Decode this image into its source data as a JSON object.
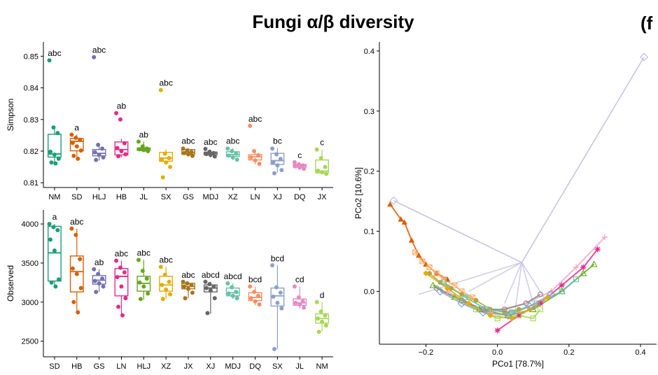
{
  "figure": {
    "title": "Fungi α/β diversity",
    "panel_label": "(f"
  },
  "chart_data": [
    {
      "type": "box",
      "id": "simpson",
      "ylabel": "Simpson",
      "ylim": [
        0.8085,
        0.8545
      ],
      "yticks": [
        0.81,
        0.82,
        0.83,
        0.84,
        0.85
      ],
      "ytick_labels": [
        "0.81",
        "0.82",
        "0.83",
        "0.84",
        "0.85"
      ],
      "groups": [
        {
          "name": "NM",
          "color": "#1b9e77",
          "q1": 0.8181,
          "median": 0.8191,
          "q3": 0.8253,
          "lw": 0.8161,
          "uw": 0.827,
          "letter": "abc",
          "points": [
            0.8487,
            0.8275,
            0.8257,
            0.8198,
            0.8189,
            0.8176,
            0.8164,
            0.8161
          ]
        },
        {
          "name": "SD",
          "color": "#d95f02",
          "q1": 0.8201,
          "median": 0.8231,
          "q3": 0.824,
          "lw": 0.8172,
          "uw": 0.8252,
          "letter": "a",
          "points": [
            0.8252,
            0.8242,
            0.8236,
            0.8226,
            0.8215,
            0.8202,
            0.8185,
            0.8176
          ]
        },
        {
          "name": "HLJ",
          "color": "#7570b3",
          "q1": 0.8185,
          "median": 0.8193,
          "q3": 0.8205,
          "lw": 0.817,
          "uw": 0.822,
          "letter": "abc",
          "points": [
            0.8497,
            0.822,
            0.8208,
            0.8196,
            0.8188,
            0.818,
            0.8172
          ]
        },
        {
          "name": "HB",
          "color": "#e7298a",
          "q1": 0.8188,
          "median": 0.8205,
          "q3": 0.8229,
          "lw": 0.818,
          "uw": 0.8239,
          "letter": "ab",
          "points": [
            0.832,
            0.83,
            0.8225,
            0.821,
            0.82,
            0.819,
            0.8184
          ]
        },
        {
          "name": "JL",
          "color": "#66a61e",
          "q1": 0.8202,
          "median": 0.8207,
          "q3": 0.821,
          "lw": 0.8199,
          "uw": 0.823,
          "letter": "ab",
          "points": [
            0.823,
            0.8215,
            0.8208,
            0.8206,
            0.8203,
            0.82
          ]
        },
        {
          "name": "SX",
          "color": "#e6ab02",
          "q1": 0.8168,
          "median": 0.8178,
          "q3": 0.8196,
          "lw": 0.8158,
          "uw": 0.8205,
          "letter": "abc",
          "points": [
            0.8393,
            0.8192,
            0.8178,
            0.8172,
            0.8164,
            0.815,
            0.8117
          ]
        },
        {
          "name": "GS",
          "color": "#a6761d",
          "q1": 0.819,
          "median": 0.8196,
          "q3": 0.8205,
          "lw": 0.8183,
          "uw": 0.821,
          "letter": "abc",
          "points": [
            0.8208,
            0.8202,
            0.8197,
            0.8194,
            0.819,
            0.8185
          ]
        },
        {
          "name": "MDJ",
          "color": "#666666",
          "q1": 0.8188,
          "median": 0.8193,
          "q3": 0.8197,
          "lw": 0.818,
          "uw": 0.8205,
          "letter": "abc",
          "points": [
            0.8207,
            0.8198,
            0.8194,
            0.8191,
            0.8188,
            0.8183
          ]
        },
        {
          "name": "XZ",
          "color": "#66c2a5",
          "q1": 0.8183,
          "median": 0.8189,
          "q3": 0.8198,
          "lw": 0.8172,
          "uw": 0.821,
          "letter": "abc",
          "points": [
            0.8208,
            0.82,
            0.8192,
            0.8186,
            0.818,
            0.8173
          ]
        },
        {
          "name": "LN",
          "color": "#fc8d62",
          "q1": 0.8172,
          "median": 0.8182,
          "q3": 0.8189,
          "lw": 0.8158,
          "uw": 0.8203,
          "letter": "abc",
          "points": [
            0.828,
            0.82,
            0.8187,
            0.818,
            0.8171,
            0.816
          ]
        },
        {
          "name": "XJ",
          "color": "#8da0cb",
          "q1": 0.8158,
          "median": 0.817,
          "q3": 0.8193,
          "lw": 0.8132,
          "uw": 0.821,
          "letter": "bc",
          "points": [
            0.8208,
            0.819,
            0.8175,
            0.8165,
            0.8155,
            0.814,
            0.813
          ]
        },
        {
          "name": "DQ",
          "color": "#e78ac3",
          "q1": 0.8149,
          "median": 0.8154,
          "q3": 0.8158,
          "lw": 0.8143,
          "uw": 0.8165,
          "letter": "c",
          "points": [
            0.8165,
            0.8158,
            0.8155,
            0.8152,
            0.8148,
            0.8144
          ]
        },
        {
          "name": "JX",
          "color": "#a6d854",
          "q1": 0.8131,
          "median": 0.8137,
          "q3": 0.8172,
          "lw": 0.8127,
          "uw": 0.8205,
          "letter": "c",
          "points": [
            0.8205,
            0.8178,
            0.815,
            0.8138,
            0.8133,
            0.8128
          ]
        }
      ]
    },
    {
      "type": "box",
      "id": "observed",
      "ylabel": "Observed",
      "ylim": [
        2300,
        4180
      ],
      "yticks": [
        2500,
        3000,
        3500,
        4000
      ],
      "ytick_labels": [
        "2500",
        "3000",
        "3500",
        "4000"
      ],
      "groups": [
        {
          "name": "SD",
          "color": "#1b9e77",
          "q1": 3270,
          "median": 3630,
          "q3": 3970,
          "lw": 3190,
          "uw": 4000,
          "letter": "a",
          "points": [
            4000,
            3960,
            3920,
            3800,
            3660,
            3290,
            3250,
            3200
          ]
        },
        {
          "name": "HB",
          "color": "#d95f02",
          "q1": 3130,
          "median": 3390,
          "q3": 3590,
          "lw": 2860,
          "uw": 3940,
          "letter": "abc",
          "points": [
            3940,
            3860,
            3550,
            3430,
            3360,
            3180,
            3000,
            2870
          ]
        },
        {
          "name": "GS",
          "color": "#7570b3",
          "q1": 3230,
          "median": 3280,
          "q3": 3340,
          "lw": 3130,
          "uw": 3420,
          "letter": "ab",
          "points": [
            3420,
            3360,
            3300,
            3270,
            3240,
            3200,
            3130
          ]
        },
        {
          "name": "LN",
          "color": "#e7298a",
          "q1": 3080,
          "median": 3330,
          "q3": 3430,
          "lw": 2830,
          "uw": 3530,
          "letter": "abc",
          "points": [
            3530,
            3440,
            3380,
            3320,
            3200,
            3050,
            2940,
            2830
          ]
        },
        {
          "name": "HLJ",
          "color": "#66a61e",
          "q1": 3140,
          "median": 3240,
          "q3": 3330,
          "lw": 3030,
          "uw": 3540,
          "letter": "abc",
          "points": [
            3540,
            3400,
            3300,
            3250,
            3200,
            3110,
            3040
          ]
        },
        {
          "name": "XZ",
          "color": "#e6ab02",
          "q1": 3140,
          "median": 3220,
          "q3": 3330,
          "lw": 3040,
          "uw": 3450,
          "letter": "abc",
          "points": [
            3450,
            3350,
            3260,
            3220,
            3160,
            3100,
            3040
          ]
        },
        {
          "name": "JX",
          "color": "#a6761d",
          "q1": 3170,
          "median": 3200,
          "q3": 3240,
          "lw": 3050,
          "uw": 3260,
          "letter": "abc",
          "points": [
            3260,
            3240,
            3220,
            3200,
            3170,
            3120,
            3050
          ]
        },
        {
          "name": "XJ",
          "color": "#666666",
          "q1": 3130,
          "median": 3180,
          "q3": 3220,
          "lw": 2850,
          "uw": 3260,
          "letter": "abcd",
          "points": [
            3260,
            3230,
            3200,
            3180,
            3150,
            3050,
            2860
          ]
        },
        {
          "name": "MDJ",
          "color": "#66c2a5",
          "q1": 3080,
          "median": 3120,
          "q3": 3180,
          "lw": 3040,
          "uw": 3240,
          "letter": "abcd",
          "points": [
            3240,
            3190,
            3130,
            3110,
            3080,
            3050
          ]
        },
        {
          "name": "DQ",
          "color": "#fc8d62",
          "q1": 3020,
          "median": 3060,
          "q3": 3120,
          "lw": 2960,
          "uw": 3200,
          "letter": "bcd",
          "points": [
            3200,
            3130,
            3080,
            3050,
            3010,
            2970
          ]
        },
        {
          "name": "SX",
          "color": "#8da0cb",
          "q1": 2950,
          "median": 3080,
          "q3": 3180,
          "lw": 2400,
          "uw": 3470,
          "letter": "bcd",
          "points": [
            3470,
            3190,
            3120,
            3070,
            2990,
            2920,
            2400
          ]
        },
        {
          "name": "JL",
          "color": "#e78ac3",
          "q1": 2960,
          "median": 2990,
          "q3": 3040,
          "lw": 2920,
          "uw": 3200,
          "letter": "cd",
          "points": [
            3200,
            3060,
            3010,
            2990,
            2970,
            2930
          ]
        },
        {
          "name": "NM",
          "color": "#a6d854",
          "q1": 2730,
          "median": 2790,
          "q3": 2850,
          "lw": 2620,
          "uw": 3000,
          "letter": "d",
          "points": [
            3000,
            2880,
            2830,
            2790,
            2750,
            2700,
            2620
          ]
        }
      ]
    },
    {
      "type": "scatter",
      "id": "pcoa",
      "xlabel": "PCo1 [78.7%]",
      "ylabel": "PCo2 [10.6%]",
      "xlim": [
        -0.33,
        0.445
      ],
      "ylim": [
        -0.088,
        0.415
      ],
      "xticks": [
        -0.2,
        0.0,
        0.2,
        0.4
      ],
      "xtick_labels": [
        "−0.2",
        "0.0",
        "0.2",
        "0.4"
      ],
      "yticks": [
        0.0,
        0.1,
        0.2,
        0.3,
        0.4
      ],
      "ytick_labels": [
        "0.0",
        "0.1",
        "0.2",
        "0.3",
        "0.4"
      ],
      "centroid": [
        0.068,
        0.048
      ],
      "series": [
        {
          "name": "outlier-diamonds",
          "color": "#bcbddc",
          "marker": "diamond-open",
          "points": [
            [
              0.41,
              0.39
            ],
            [
              -0.29,
              0.151
            ]
          ],
          "spider": true
        },
        {
          "name": "lavender-lines",
          "color": "#c8c6e3",
          "marker": "none",
          "points": [
            [
              -0.22,
              -0.005
            ],
            [
              -0.08,
              0.0
            ],
            [
              0.02,
              -0.02
            ],
            [
              0.1,
              -0.02
            ],
            [
              0.13,
              -0.01
            ],
            [
              0.05,
              -0.03
            ]
          ],
          "spider": true
        },
        {
          "name": "brown-triangles",
          "color": "#d95f02",
          "marker": "triangle",
          "points": [
            [
              -0.3,
              0.145
            ],
            [
              -0.27,
              0.12
            ],
            [
              -0.26,
              0.115
            ],
            [
              -0.24,
              0.085
            ],
            [
              -0.22,
              0.06
            ],
            [
              -0.2,
              0.045
            ],
            [
              -0.17,
              0.03
            ],
            [
              -0.14,
              0.02
            ]
          ],
          "path": true
        },
        {
          "name": "peach-xsquares",
          "color": "#fdae6b",
          "marker": "x-square",
          "points": [
            [
              -0.23,
              0.065
            ],
            [
              -0.21,
              0.05
            ],
            [
              -0.19,
              0.04
            ],
            [
              -0.17,
              0.03
            ],
            [
              -0.15,
              0.02
            ],
            [
              -0.12,
              0.01
            ],
            [
              -0.1,
              0.0
            ],
            [
              -0.07,
              -0.01
            ]
          ],
          "path": true
        },
        {
          "name": "olive-circles",
          "color": "#b5a642",
          "marker": "circle",
          "points": [
            [
              -0.19,
              0.03
            ],
            [
              -0.16,
              0.015
            ],
            [
              -0.13,
              0.005
            ],
            [
              -0.1,
              -0.005
            ],
            [
              -0.06,
              -0.015
            ],
            [
              -0.02,
              -0.03
            ],
            [
              0.02,
              -0.035
            ],
            [
              0.06,
              -0.03
            ]
          ],
          "path": true
        },
        {
          "name": "pink-plus",
          "color": "#f4a6c4",
          "marker": "plus",
          "points": [
            [
              0.3,
              0.09
            ],
            [
              0.22,
              0.04
            ],
            [
              0.15,
              0.0
            ],
            [
              0.08,
              -0.02
            ],
            [
              -0.02,
              -0.035
            ],
            [
              -0.08,
              -0.02
            ],
            [
              -0.14,
              0.0
            ]
          ],
          "path": true
        },
        {
          "name": "magenta-stars",
          "color": "#e7298a",
          "marker": "star",
          "points": [
            [
              0.0,
              -0.065
            ],
            [
              0.06,
              -0.04
            ],
            [
              0.12,
              -0.02
            ],
            [
              0.18,
              0.01
            ],
            [
              0.24,
              0.04
            ],
            [
              0.28,
              0.07
            ]
          ],
          "path": true
        },
        {
          "name": "green-triangles",
          "color": "#66a61e",
          "marker": "triangle-open",
          "points": [
            [
              -0.18,
              0.01
            ],
            [
              -0.12,
              -0.01
            ],
            [
              -0.05,
              -0.03
            ],
            [
              0.03,
              -0.04
            ],
            [
              0.1,
              -0.03
            ],
            [
              0.18,
              0.0
            ],
            [
              0.24,
              0.03
            ],
            [
              0.27,
              0.045
            ]
          ],
          "path": true
        },
        {
          "name": "teal-squares",
          "color": "#66c2a5",
          "marker": "square-open",
          "points": [
            [
              -0.15,
              0.015
            ],
            [
              -0.09,
              -0.01
            ],
            [
              -0.03,
              -0.03
            ],
            [
              0.04,
              -0.035
            ],
            [
              0.11,
              -0.02
            ],
            [
              0.18,
              0.0
            ],
            [
              0.22,
              0.02
            ]
          ],
          "path": true
        },
        {
          "name": "orange-diamonds",
          "color": "#e6ab02",
          "marker": "diamond",
          "points": [
            [
              -0.2,
              0.03
            ],
            [
              -0.14,
              0.005
            ],
            [
              -0.08,
              -0.02
            ],
            [
              -0.02,
              -0.04
            ],
            [
              0.04,
              -0.045
            ],
            [
              0.09,
              -0.03
            ],
            [
              0.14,
              -0.01
            ]
          ],
          "path": true
        },
        {
          "name": "gray-circles",
          "color": "#888888",
          "marker": "circle-open",
          "points": [
            [
              -0.17,
              0.005
            ],
            [
              -0.1,
              -0.015
            ],
            [
              -0.04,
              -0.03
            ],
            [
              0.02,
              -0.03
            ],
            [
              0.08,
              -0.02
            ],
            [
              0.12,
              -0.005
            ]
          ],
          "path": true
        },
        {
          "name": "lightgreen-squares",
          "color": "#a6d854",
          "marker": "square-open",
          "points": [
            [
              -0.12,
              -0.01
            ],
            [
              -0.06,
              -0.03
            ],
            [
              0.0,
              -0.045
            ],
            [
              0.06,
              -0.04
            ],
            [
              0.1,
              -0.045
            ],
            [
              0.12,
              -0.03
            ]
          ],
          "path": true
        },
        {
          "name": "blue-diamonds",
          "color": "#8da0cb",
          "marker": "diamond-open",
          "points": [
            [
              -0.16,
              0.0
            ],
            [
              -0.1,
              -0.02
            ],
            [
              -0.04,
              -0.035
            ],
            [
              0.03,
              -0.04
            ],
            [
              0.09,
              -0.025
            ],
            [
              0.15,
              -0.005
            ]
          ],
          "path": true
        }
      ]
    }
  ]
}
